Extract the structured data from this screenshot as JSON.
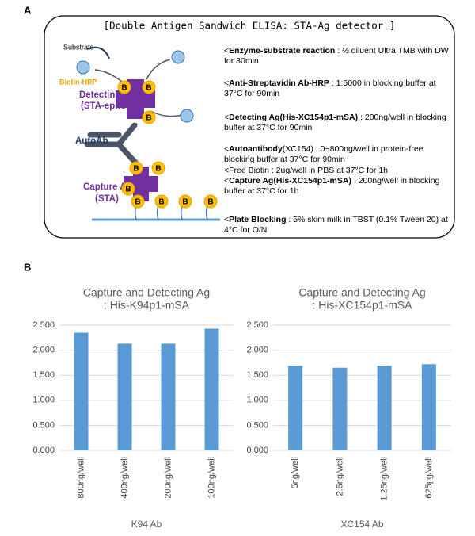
{
  "panel_a": {
    "label": "A",
    "title": "[Double Antigen Sandwich ELISA: STA-Ag detector ]",
    "labels": {
      "substrate": "Substrate",
      "biotin_hrp": "Biotin-HRP",
      "detecting_ag": "Detecting Ag",
      "detecting_ag_sub": "(STA-epitope)",
      "autoab": "AutoAb",
      "capture_ag": "Capture Ag",
      "capture_ag_sub": "(STA)",
      "biotin": "B"
    },
    "steps": [
      [
        {
          "text": "<"
        },
        {
          "text": "Enzyme-substrate reaction",
          "bold": true
        },
        {
          "text": " : ½ diluent Ultra TMB with DW for 30min"
        }
      ],
      [
        {
          "text": "<"
        },
        {
          "text": "Anti-Streptavidin Ab-HRP",
          "bold": true
        },
        {
          "text": " : 1:5000 in blocking buffer at 37°C for 90min"
        }
      ],
      [
        {
          "text": "<"
        },
        {
          "text": "Detecting Ag(His-XC154p1-mSA)",
          "bold": true
        },
        {
          "text": " : 200ng/well in blocking buffer at 37°C for 90min"
        }
      ],
      [
        {
          "text": "<"
        },
        {
          "text": "Autoantibody",
          "bold": true
        },
        {
          "text": "(XC154) : 0~800ng/well in protein-free blocking buffer at  37°C for 90min"
        }
      ],
      [
        {
          "text": "<Free Biotin : 2ug/well in PBS at 37°C for 1h"
        }
      ],
      [
        {
          "text": "<"
        },
        {
          "text": "Capture Ag(His-XC154p1-mSA)",
          "bold": true
        },
        {
          "text": " : 200ng/well in blocking buffer at 37°C for 1h"
        }
      ],
      [
        {
          "text": "<"
        },
        {
          "text": "Plate Blocking",
          "bold": true
        },
        {
          "text": " : 5% skim milk in TBST (0.1% Tween 20) at 4°C for O/N"
        }
      ]
    ]
  },
  "panel_b_label": "B",
  "chart_data": [
    {
      "type": "bar",
      "title": "Capture and Detecting Ag",
      "subtitle": ": His-K94p1-mSA",
      "x_label": "K94 Ab",
      "categories": [
        "800ng/well",
        "400ng/well",
        "200ng/well",
        "100ng/well"
      ],
      "values": [
        2.35,
        2.13,
        2.13,
        2.43
      ],
      "color": "#5b9bd5",
      "ylim": [
        0,
        2.5
      ],
      "yticks": [
        {
          "value": 0,
          "label": "0.000"
        },
        {
          "value": 0.5,
          "label": "0.500"
        },
        {
          "value": 1,
          "label": "1.000"
        },
        {
          "value": 1.5,
          "label": "1.500"
        },
        {
          "value": 2,
          "label": "2.000"
        },
        {
          "value": 2.5,
          "label": "2.500"
        }
      ],
      "grid": true
    },
    {
      "type": "bar",
      "title": "Capture and Detecting Ag",
      "subtitle": ": His-XC154p1-mSA",
      "x_label": "XC154 Ab",
      "categories": [
        "5ng/well",
        "2.5ng/well",
        "1.25ng/well",
        "625pg/well"
      ],
      "values": [
        1.69,
        1.65,
        1.69,
        1.72
      ],
      "color": "#5b9bd5",
      "ylim": [
        0,
        2.5
      ],
      "yticks": [
        {
          "value": 0,
          "label": "0.000"
        },
        {
          "value": 0.5,
          "label": "0.500"
        },
        {
          "value": 1,
          "label": "1.000"
        },
        {
          "value": 1.5,
          "label": "1.500"
        },
        {
          "value": 2,
          "label": "2.000"
        },
        {
          "value": 2.5,
          "label": "2.500"
        }
      ],
      "grid": true
    }
  ]
}
